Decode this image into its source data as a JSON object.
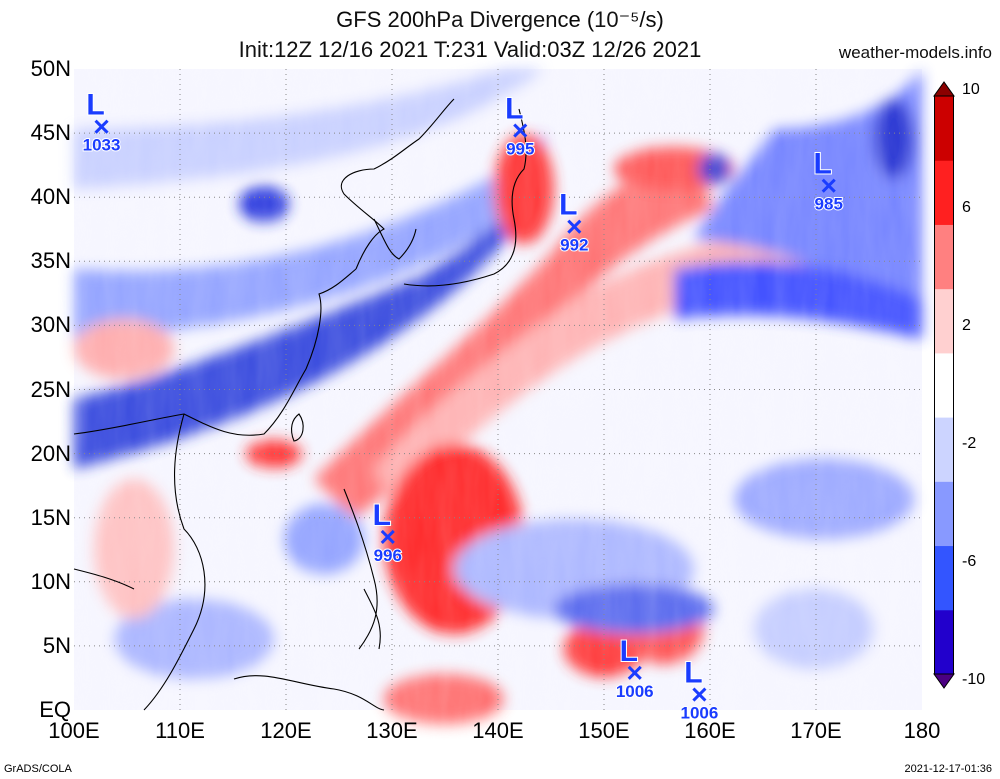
{
  "title": {
    "line1": "GFS 200hPa Divergence (10⁻⁵/s)",
    "line2": "Init:12Z 12/16 2021 T:231 Valid:03Z 12/26 2021"
  },
  "source": "weather-models.info",
  "footer": {
    "left": "GrADS/COLA",
    "right": "2021-12-17-01:36"
  },
  "map": {
    "lat_labels": [
      "50N",
      "45N",
      "40N",
      "35N",
      "30N",
      "25N",
      "20N",
      "15N",
      "10N",
      "5N",
      "EQ"
    ],
    "lon_labels": [
      "100E",
      "110E",
      "120E",
      "130E",
      "140E",
      "150E",
      "160E",
      "170E",
      "180"
    ],
    "lat_range": [
      0,
      50
    ],
    "lon_range": [
      100,
      180
    ],
    "grid": "dotted",
    "lows": [
      {
        "lon": 102.6,
        "lat": 45.5,
        "pressure": "1033"
      },
      {
        "lon": 142.1,
        "lat": 45.2,
        "pressure": "995"
      },
      {
        "lon": 147.2,
        "lat": 37.7,
        "pressure": "992"
      },
      {
        "lon": 171.2,
        "lat": 40.9,
        "pressure": "985"
      },
      {
        "lon": 129.6,
        "lat": 13.5,
        "pressure": "996"
      },
      {
        "lon": 152.9,
        "lat": 2.9,
        "pressure": "1006"
      },
      {
        "lon": 159.0,
        "lat": 1.2,
        "pressure": "1006"
      }
    ],
    "low_symbol": "L",
    "low_color": "#1a3cff"
  },
  "colorbar": {
    "labels": [
      "10",
      "6",
      "2",
      "-2",
      "-6",
      "-10"
    ],
    "colors": [
      "#4b0082",
      "#2200cc",
      "#3355ff",
      "#8899ff",
      "#ccd4ff",
      "#ffffff",
      "#ffd0d0",
      "#ff8080",
      "#ff2020",
      "#cc0000",
      "#8b0000"
    ]
  }
}
